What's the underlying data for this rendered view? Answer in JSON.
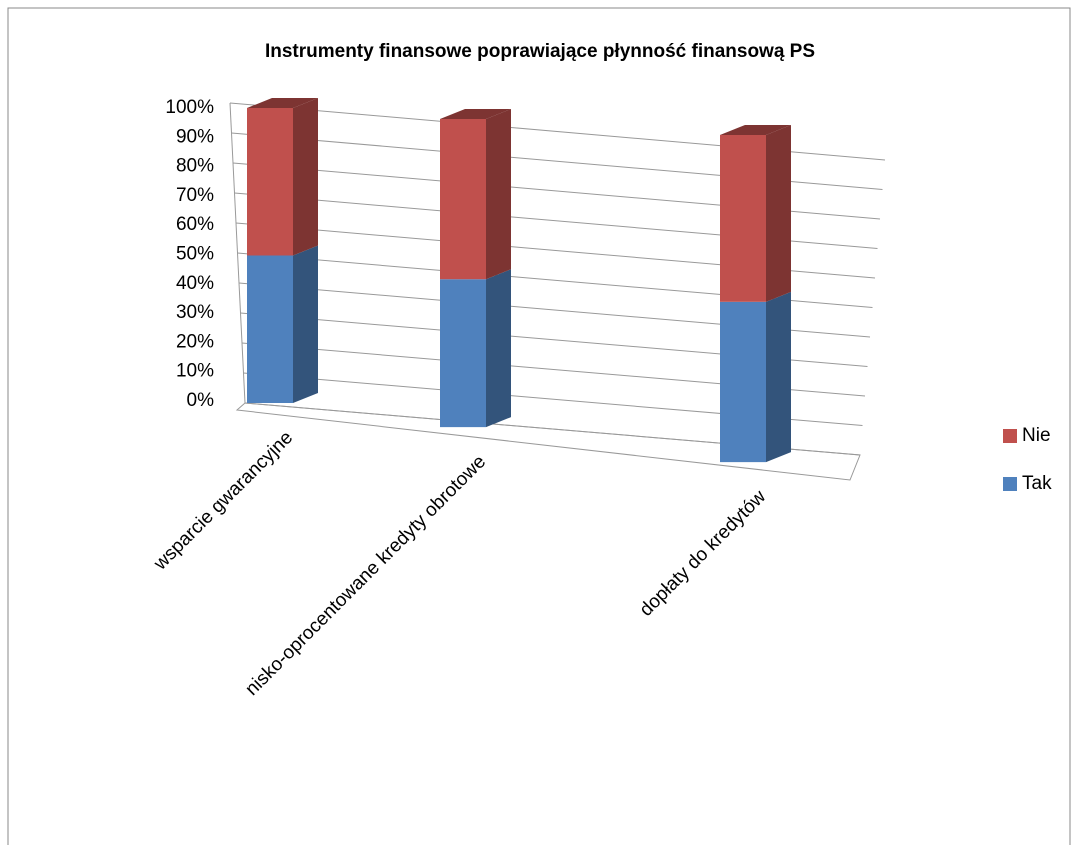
{
  "chart_data": {
    "type": "bar",
    "stacked": true,
    "title": "Instrumenty finansowe poprawiające płynność finansową PS",
    "categories": [
      "wsparcie gwarancyjne",
      "nisko-oprocentowane kredyty obrotowe",
      "dopłaty do kredytów"
    ],
    "series": [
      {
        "name": "Tak",
        "color": "#4f81bd",
        "values": [
          50,
          48,
          49
        ]
      },
      {
        "name": "Nie",
        "color": "#c0504d",
        "values": [
          50,
          52,
          51
        ]
      }
    ],
    "ylim": [
      0,
      100
    ],
    "yticks": [
      {
        "value": 0,
        "label": "0%"
      },
      {
        "value": 10,
        "label": "10%"
      },
      {
        "value": 20,
        "label": "20%"
      },
      {
        "value": 30,
        "label": "30%"
      },
      {
        "value": 40,
        "label": "40%"
      },
      {
        "value": 50,
        "label": "50%"
      },
      {
        "value": 60,
        "label": "60%"
      },
      {
        "value": 70,
        "label": "70%"
      },
      {
        "value": 80,
        "label": "80%"
      },
      {
        "value": 90,
        "label": "90%"
      },
      {
        "value": 100,
        "label": "100%"
      }
    ],
    "grid": true,
    "legend": "right"
  }
}
